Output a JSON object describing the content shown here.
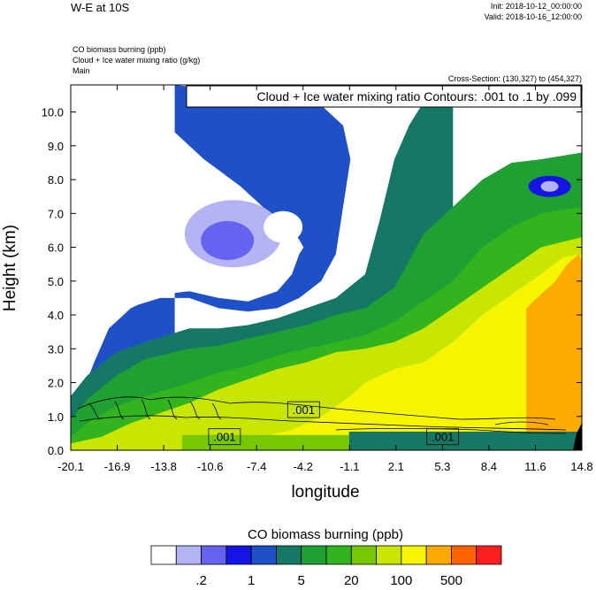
{
  "header": {
    "title": "W-E at 10S",
    "init": "Init: 2018-10-12_00:00:00",
    "valid": "Valid: 2018-10-16_12:00:00",
    "field1": "CO biomass burning   (ppb)",
    "field2": "Cloud + Ice water mixing ratio   (g/kg)",
    "field3": "Main",
    "cross_section": "Cross-Section: (130,327) to (454,327)"
  },
  "chart_data": {
    "type": "heatmap",
    "title": "W-E at 10S",
    "xlabel": "longitude",
    "ylabel": "Height (km)",
    "xlim": [
      -20.1,
      14.8
    ],
    "ylim": [
      0.0,
      10.8
    ],
    "x_ticks": [
      "-20.1",
      "-16.9",
      "-13.8",
      "-10.6",
      "-7.4",
      "-4.2",
      "-1.1",
      "2.1",
      "5.3",
      "8.4",
      "11.6",
      "14.8"
    ],
    "y_ticks": [
      "0.0",
      "1.0",
      "2.0",
      "3.0",
      "4.0",
      "5.0",
      "6.0",
      "7.0",
      "8.0",
      "9.0",
      "10.0"
    ],
    "contour_title": "Cloud + Ice water mixing ratio Contours: .001 to .1 by .099",
    "contour_labels": [
      {
        "text": ".001",
        "x": -4.2,
        "y": 1.2
      },
      {
        "text": ".001",
        "x": -9.6,
        "y": 0.4
      },
      {
        "text": ".001",
        "x": 5.3,
        "y": 0.4
      }
    ],
    "colorbar": {
      "title": "CO biomass burning  (ppb)",
      "colors": [
        "#ffffff",
        "#b4b4f5",
        "#6464f0",
        "#1414e6",
        "#1e50c8",
        "#147864",
        "#1ea032",
        "#32b41e",
        "#78c800",
        "#c8e600",
        "#f5f500",
        "#ffaa00",
        "#ff6400",
        "#ff1e1e"
      ],
      "tick_labels": [
        ".2",
        "1",
        "5",
        "20",
        "100",
        "500"
      ]
    },
    "bands": [
      {
        "level": "white",
        "top": [
          [
            -20.1,
            0.8
          ],
          [
            -19.5,
            1.5
          ],
          [
            -18.5,
            2.6
          ],
          [
            -17.5,
            3.6
          ],
          [
            -16,
            4.2
          ],
          [
            -14,
            4.6
          ],
          [
            -12,
            4.7
          ],
          [
            -10,
            4.5
          ],
          [
            -8,
            4.4
          ],
          [
            -6,
            4.7
          ],
          [
            -5,
            5.2
          ],
          [
            -4.5,
            5.8
          ],
          [
            -4.2,
            6.0
          ],
          [
            -5.0,
            6.6
          ],
          [
            -6.5,
            7.0
          ],
          [
            -8.5,
            7.8
          ],
          [
            -11,
            8.6
          ],
          [
            -13,
            9.4
          ],
          [
            -14.5,
            10.2
          ],
          [
            -15,
            10.8
          ]
        ]
      },
      {
        "level": "blue",
        "top": [
          [
            -20.1,
            1.6
          ],
          [
            -19.5,
            2.6
          ],
          [
            -18.5,
            3.5
          ],
          [
            -17,
            4.1
          ],
          [
            -14,
            4.5
          ],
          [
            -12,
            4.5
          ],
          [
            -10,
            4.2
          ],
          [
            -8,
            4.1
          ],
          [
            -6,
            4.2
          ],
          [
            -4.5,
            4.5
          ],
          [
            -3,
            5.0
          ],
          [
            -2,
            5.8
          ],
          [
            -1.5,
            7.2
          ],
          [
            -1,
            8.6
          ],
          [
            -1.5,
            9.6
          ],
          [
            -3,
            10.2
          ],
          [
            -6,
            10.5
          ],
          [
            -9,
            10.6
          ],
          [
            -13,
            10.8
          ]
        ]
      },
      {
        "level": "teal",
        "top": [
          [
            -20.1,
            1.6
          ],
          [
            -19,
            2.2
          ],
          [
            -17,
            2.9
          ],
          [
            -15,
            3.2
          ],
          [
            -12,
            3.6
          ],
          [
            -10,
            3.6
          ],
          [
            -8,
            3.7
          ],
          [
            -6,
            3.9
          ],
          [
            -4,
            4.2
          ],
          [
            -2,
            4.5
          ],
          [
            0,
            5.2
          ],
          [
            1,
            6.8
          ],
          [
            2,
            8.6
          ],
          [
            3,
            9.6
          ],
          [
            4,
            10.3
          ],
          [
            6,
            10.8
          ]
        ]
      },
      {
        "level": "green",
        "top": [
          [
            -20.1,
            0.9
          ],
          [
            -19,
            1.5
          ],
          [
            -17,
            2.2
          ],
          [
            -15,
            2.7
          ],
          [
            -12,
            3.0
          ],
          [
            -10,
            3.1
          ],
          [
            -8,
            3.3
          ],
          [
            -6,
            3.5
          ],
          [
            -4,
            3.7
          ],
          [
            -2,
            4.0
          ],
          [
            0,
            4.2
          ],
          [
            2,
            4.8
          ],
          [
            3,
            5.6
          ],
          [
            4,
            6.4
          ],
          [
            6,
            7.2
          ],
          [
            8,
            8.0
          ],
          [
            10,
            8.5
          ],
          [
            12,
            8.6
          ],
          [
            14.8,
            8.8
          ]
        ]
      },
      {
        "level": "light-green",
        "top": [
          [
            -20.1,
            0.4
          ],
          [
            -19,
            0.8
          ],
          [
            -17,
            1.3
          ],
          [
            -15,
            1.6
          ],
          [
            -12,
            2.0
          ],
          [
            -10,
            2.3
          ],
          [
            -8,
            2.5
          ],
          [
            -6,
            2.8
          ],
          [
            -4,
            3.0
          ],
          [
            -2,
            3.2
          ],
          [
            0,
            3.4
          ],
          [
            2,
            3.8
          ],
          [
            4,
            4.4
          ],
          [
            6,
            5.0
          ],
          [
            8,
            6.0
          ],
          [
            10,
            6.6
          ],
          [
            12,
            7.0
          ],
          [
            14.8,
            7.2
          ]
        ]
      },
      {
        "level": "yellow-green",
        "top": [
          [
            -20.1,
            0.2
          ],
          [
            -18,
            0.4
          ],
          [
            -16,
            0.8
          ],
          [
            -14,
            1.1
          ],
          [
            -12,
            1.4
          ],
          [
            -10,
            1.8
          ],
          [
            -8,
            2.1
          ],
          [
            -6,
            2.4
          ],
          [
            -4,
            2.6
          ],
          [
            -2,
            2.9
          ],
          [
            0,
            3.0
          ],
          [
            2,
            3.2
          ],
          [
            4,
            3.6
          ],
          [
            6,
            4.2
          ],
          [
            8,
            4.8
          ],
          [
            10,
            5.4
          ],
          [
            12,
            6.0
          ],
          [
            14.8,
            6.3
          ]
        ]
      },
      {
        "level": "yellow",
        "top": [
          [
            -8,
            0.3
          ],
          [
            -5,
            0.6
          ],
          [
            -3,
            1.0
          ],
          [
            -1,
            1.6
          ],
          [
            0,
            2.0
          ],
          [
            2,
            2.4
          ],
          [
            4,
            2.6
          ],
          [
            6,
            3.2
          ],
          [
            8,
            4.0
          ],
          [
            10,
            4.6
          ],
          [
            12,
            5.2
          ],
          [
            13.5,
            5.7
          ],
          [
            14.8,
            5.8
          ]
        ]
      },
      {
        "level": "orange",
        "top": [
          [
            11,
            4.2
          ],
          [
            12,
            4.6
          ],
          [
            13,
            5.0
          ],
          [
            13.8,
            5.5
          ],
          [
            14.6,
            5.8
          ],
          [
            14.8,
            5.6
          ]
        ]
      }
    ]
  }
}
